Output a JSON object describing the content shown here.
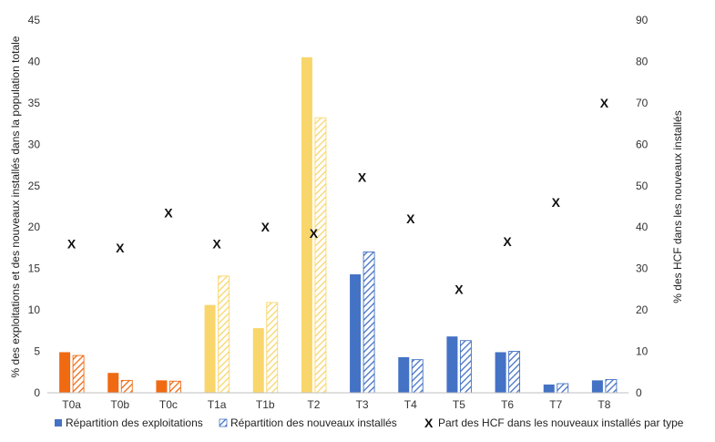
{
  "chart_data": {
    "type": "bar",
    "categories": [
      "T0a",
      "T0b",
      "T0c",
      "T1a",
      "T1b",
      "T2",
      "T3",
      "T4",
      "T5",
      "T6",
      "T7",
      "T8"
    ],
    "category_groups": [
      "T0",
      "T0",
      "T0",
      "T1",
      "T1",
      "T2",
      "T3plus",
      "T3plus",
      "T3plus",
      "T3plus",
      "T3plus",
      "T3plus"
    ],
    "group_colors": {
      "T0": "#F06A12",
      "T1": "#F9D66B",
      "T2": "#F9D66B",
      "T3plus": "#4472C4"
    },
    "series": [
      {
        "name": "Répartition des exploitations",
        "style": "solid",
        "axis": "left",
        "values": [
          4.9,
          2.4,
          1.5,
          10.6,
          7.8,
          40.5,
          14.3,
          4.3,
          6.8,
          4.9,
          1.0,
          1.5
        ]
      },
      {
        "name": "Répartition des nouveaux installés",
        "style": "hatched",
        "axis": "left",
        "values": [
          4.5,
          1.5,
          1.4,
          14.1,
          10.9,
          33.2,
          17.0,
          4.0,
          6.3,
          5.0,
          1.1,
          1.6
        ]
      },
      {
        "name": "Part des HCF dans les nouveaux installés par type",
        "style": "marker",
        "axis": "right",
        "marker_label": "X",
        "values": [
          36,
          35,
          43.5,
          36,
          40,
          38.5,
          52,
          42,
          25,
          36.5,
          46,
          70
        ]
      }
    ],
    "left_axis": {
      "label": "% des exploitations et des nouveaux installés dans la population totale",
      "ylim": [
        0,
        45
      ],
      "ticks": [
        0,
        5,
        10,
        15,
        20,
        25,
        30,
        35,
        40,
        45
      ]
    },
    "right_axis": {
      "label": "% des HCF dans les nouveaux installés",
      "ylim": [
        0,
        90
      ],
      "ticks": [
        0,
        10,
        20,
        30,
        40,
        50,
        60,
        70,
        80,
        90
      ]
    },
    "grid": false,
    "legend_position": "bottom"
  }
}
